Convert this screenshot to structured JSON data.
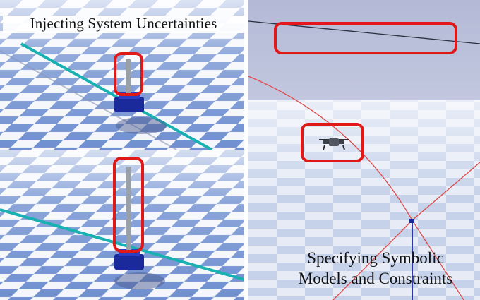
{
  "captions": {
    "top_left": "Injecting System Uncertainties",
    "bottom_right_line1": "Specifying Symbolic",
    "bottom_right_line2": "Models and Constraints"
  },
  "colors": {
    "checker_blue": "#6f8fd0",
    "checker_white": "#f4f6fb",
    "sky": "#b9bfd9",
    "cart_blue": "#1a2a9a",
    "track_teal": "#18b0b0",
    "highlight_red": "#e01818",
    "trajectory_red": "#e04a4a",
    "reference_line": "#2a3140"
  },
  "panels": {
    "cartpole_short": {
      "pole": "short pole"
    },
    "cartpole_long": {
      "pole": "long pole"
    },
    "quadrotor": {
      "object": "quadrotor"
    }
  }
}
